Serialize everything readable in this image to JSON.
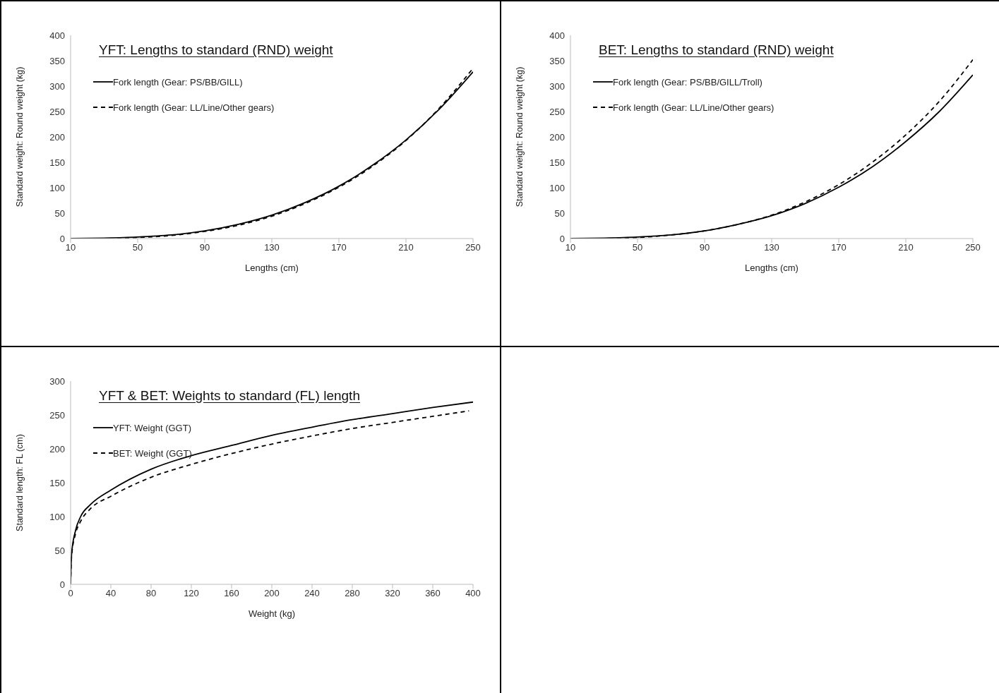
{
  "chart_data": [
    {
      "type": "line",
      "title": "YFT: Lengths to standard (RND) weight",
      "xlabel": "Lengths (cm)",
      "ylabel": "Standard weight: Round weight (kg)",
      "xlim": [
        10,
        250
      ],
      "xticks": [
        10,
        50,
        90,
        130,
        170,
        210,
        250
      ],
      "ylim": [
        0,
        400
      ],
      "yticks": [
        0,
        50,
        100,
        150,
        200,
        250,
        300,
        350,
        400
      ],
      "legend": "top left",
      "series": [
        {
          "name": "Fork length (Gear: PS/BB/GILL)",
          "color": "#000000",
          "line_style": "solid",
          "x": [
            10,
            30,
            50,
            70,
            90,
            110,
            130,
            150,
            170,
            190,
            210,
            230,
            250
          ],
          "values": [
            0,
            1,
            3,
            7,
            15,
            28,
            46,
            71,
            103,
            144,
            194,
            255,
            328
          ]
        },
        {
          "name": "Fork length (Gear: LL/Line/Other gears)",
          "color": "#000000",
          "line_style": "dashed",
          "x": [
            10,
            30,
            50,
            70,
            90,
            110,
            130,
            150,
            170,
            190,
            210,
            230,
            250
          ],
          "values": [
            0,
            0,
            2,
            6,
            14,
            26,
            44,
            69,
            101,
            142,
            193,
            257,
            335
          ]
        }
      ]
    },
    {
      "type": "line",
      "title": "BET: Lengths to standard (RND) weight",
      "xlabel": "Lengths (cm)",
      "ylabel": "Standard weight: Round weight (kg)",
      "xlim": [
        10,
        250
      ],
      "xticks": [
        10,
        50,
        90,
        130,
        170,
        210,
        250
      ],
      "ylim": [
        0,
        400
      ],
      "yticks": [
        0,
        50,
        100,
        150,
        200,
        250,
        300,
        350,
        400
      ],
      "legend": "top left",
      "series": [
        {
          "name": "Fork length (Gear: PS/BB/GILL/Troll)",
          "color": "#000000",
          "line_style": "solid",
          "x": [
            10,
            30,
            50,
            70,
            90,
            110,
            130,
            150,
            170,
            190,
            210,
            230,
            250
          ],
          "values": [
            0,
            1,
            3,
            7,
            15,
            28,
            45,
            69,
            101,
            141,
            191,
            250,
            322
          ]
        },
        {
          "name": "Fork length (Gear: LL/Line/Other gears)",
          "color": "#000000",
          "line_style": "dashed",
          "x": [
            10,
            30,
            50,
            70,
            90,
            110,
            130,
            150,
            170,
            190,
            210,
            230,
            250
          ],
          "values": [
            0,
            0,
            2,
            7,
            15,
            28,
            46,
            72,
            106,
            150,
            204,
            270,
            352
          ]
        }
      ]
    },
    {
      "type": "line",
      "title": "YFT & BET: Weights to standard (FL) length",
      "xlabel": "Weight (kg)",
      "ylabel": "Standard length: FL (cm)",
      "xlim": [
        0,
        400
      ],
      "xticks": [
        0,
        40,
        80,
        120,
        160,
        200,
        240,
        280,
        320,
        360,
        400
      ],
      "ylim": [
        0,
        300
      ],
      "yticks": [
        0,
        50,
        100,
        150,
        200,
        250,
        300
      ],
      "legend": "top left",
      "series": [
        {
          "name": "YFT: Weight (GGT)",
          "color": "#000000",
          "line_style": "solid",
          "x": [
            0,
            1,
            5,
            10,
            20,
            40,
            80,
            120,
            160,
            200,
            240,
            280,
            320,
            360,
            400
          ],
          "values": [
            0,
            45,
            80,
            100,
            118,
            139,
            170,
            190,
            205,
            220,
            232,
            243,
            252,
            261,
            269
          ]
        },
        {
          "name": "BET: Weight (GGT)",
          "color": "#000000",
          "line_style": "dashed",
          "x": [
            0,
            1,
            5,
            10,
            20,
            40,
            80,
            120,
            160,
            200,
            240,
            280,
            320,
            360,
            396
          ],
          "values": [
            0,
            42,
            75,
            93,
            112,
            130,
            158,
            177,
            193,
            207,
            219,
            230,
            239,
            248,
            256
          ]
        }
      ]
    }
  ]
}
